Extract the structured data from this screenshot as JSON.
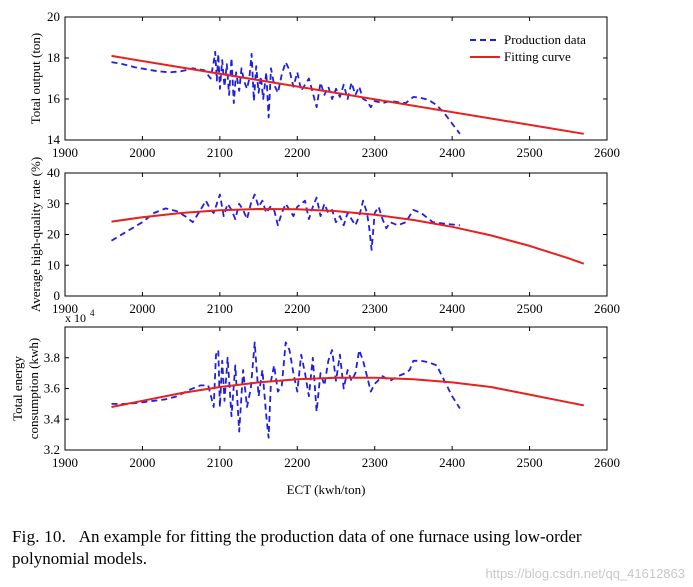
{
  "chart_data": [
    {
      "type": "line",
      "ylabel": "Total output (ton)",
      "xlabel": "",
      "xlim": [
        1900,
        2600
      ],
      "ylim": [
        14,
        20
      ],
      "xticks": [
        1900,
        2000,
        2100,
        2200,
        2300,
        2400,
        2500,
        2600
      ],
      "yticks": [
        14,
        16,
        18,
        20
      ],
      "grid": false,
      "legend_position": "top-right",
      "series": [
        {
          "name": "Production data",
          "style": "dashed",
          "color": "#1f1fe0",
          "x": [
            1960,
            1975,
            1990,
            2005,
            2020,
            2035,
            2050,
            2065,
            2080,
            2088,
            2092,
            2094,
            2096,
            2098,
            2100,
            2103,
            2106,
            2109,
            2112,
            2115,
            2118,
            2121,
            2125,
            2128,
            2131,
            2135,
            2138,
            2141,
            2144,
            2147,
            2150,
            2153,
            2156,
            2160,
            2163,
            2166,
            2170,
            2175,
            2180,
            2185,
            2190,
            2195,
            2200,
            2205,
            2210,
            2215,
            2220,
            2225,
            2230,
            2235,
            2240,
            2245,
            2250,
            2255,
            2260,
            2265,
            2270,
            2275,
            2280,
            2285,
            2290,
            2295,
            2300,
            2310,
            2320,
            2330,
            2340,
            2345,
            2350,
            2360,
            2370,
            2380,
            2390,
            2400,
            2410
          ],
          "y": [
            17.8,
            17.7,
            17.55,
            17.45,
            17.35,
            17.3,
            17.35,
            17.5,
            17.4,
            17.0,
            17.8,
            18.3,
            16.9,
            18.2,
            16.5,
            17.9,
            16.6,
            17.7,
            16.2,
            18.0,
            15.8,
            17.3,
            16.4,
            17.5,
            16.9,
            16.5,
            17.0,
            18.2,
            15.9,
            17.6,
            16.3,
            17.1,
            16.0,
            17.3,
            15.1,
            17.5,
            16.7,
            16.3,
            17.2,
            17.8,
            17.4,
            16.6,
            17.3,
            16.4,
            16.7,
            17.0,
            16.3,
            15.6,
            16.8,
            16.2,
            16.6,
            16.0,
            16.5,
            16.1,
            16.7,
            16.0,
            16.8,
            16.2,
            16.6,
            16.0,
            15.9,
            15.6,
            15.9,
            15.8,
            15.9,
            15.85,
            15.8,
            15.95,
            16.1,
            16.05,
            15.95,
            15.7,
            15.3,
            14.8,
            14.3
          ]
        },
        {
          "name": "Fitting curve",
          "style": "solid",
          "color": "#e8201e",
          "x": [
            1960,
            2570
          ],
          "y": [
            18.1,
            14.3
          ]
        }
      ]
    },
    {
      "type": "line",
      "ylabel": "Average high-quality rate (%)",
      "xlabel": "",
      "xlim": [
        1900,
        2600
      ],
      "ylim": [
        0,
        40
      ],
      "xticks": [
        1900,
        2000,
        2100,
        2200,
        2300,
        2400,
        2500,
        2600
      ],
      "yticks": [
        0,
        10,
        20,
        30,
        40
      ],
      "grid": false,
      "series": [
        {
          "name": "Production data",
          "style": "dashed",
          "color": "#1f1fe0",
          "x": [
            1960,
            1980,
            2000,
            2015,
            2030,
            2045,
            2055,
            2065,
            2075,
            2082,
            2088,
            2092,
            2096,
            2100,
            2105,
            2110,
            2115,
            2120,
            2125,
            2130,
            2135,
            2140,
            2145,
            2150,
            2155,
            2160,
            2165,
            2170,
            2175,
            2180,
            2185,
            2190,
            2195,
            2200,
            2205,
            2210,
            2215,
            2220,
            2225,
            2230,
            2235,
            2240,
            2245,
            2250,
            2255,
            2260,
            2265,
            2270,
            2275,
            2280,
            2285,
            2290,
            2293,
            2296,
            2300,
            2305,
            2310,
            2315,
            2320,
            2330,
            2340,
            2350,
            2360,
            2375,
            2390,
            2410
          ],
          "y": [
            18,
            21,
            24,
            27,
            28.5,
            27.5,
            26,
            24,
            28,
            31,
            28,
            27,
            30,
            33,
            26,
            30,
            28,
            25,
            30,
            28,
            25,
            30,
            33,
            29,
            31,
            27,
            29,
            28,
            23,
            27,
            30,
            28,
            26,
            29,
            30,
            31,
            25,
            29,
            32,
            26,
            30,
            27,
            28,
            24,
            26,
            23,
            27,
            25,
            23,
            26,
            31,
            27,
            22,
            15,
            27,
            29,
            25,
            22,
            24,
            23,
            24,
            28,
            27,
            24,
            23.5,
            23
          ]
        },
        {
          "name": "Fitting curve",
          "style": "solid",
          "color": "#e8201e",
          "x": [
            1960,
            2000,
            2050,
            2100,
            2150,
            2200,
            2250,
            2300,
            2350,
            2400,
            2450,
            2500,
            2550,
            2570
          ],
          "y": [
            24.2,
            25.6,
            27.0,
            27.9,
            28.3,
            28.2,
            27.6,
            26.4,
            24.7,
            22.5,
            19.7,
            16.3,
            12.3,
            10.5
          ]
        }
      ]
    },
    {
      "type": "line",
      "ylabel": "Total energy consumption (kwh)",
      "xlabel": "ECT (kwh/ton)",
      "axis_multiplier": "x 10",
      "axis_multiplier_exp": "4",
      "xlim": [
        1900,
        2600
      ],
      "ylim": [
        3.2,
        4.0
      ],
      "xticks": [
        1900,
        2000,
        2100,
        2200,
        2300,
        2400,
        2500,
        2600
      ],
      "yticks": [
        3.2,
        3.4,
        3.6,
        3.8
      ],
      "grid": false,
      "series": [
        {
          "name": "Production data",
          "style": "dashed",
          "color": "#1f1fe0",
          "x": [
            1960,
            1980,
            2000,
            2015,
            2030,
            2045,
            2060,
            2075,
            2085,
            2092,
            2095,
            2098,
            2100,
            2103,
            2106,
            2110,
            2115,
            2120,
            2125,
            2130,
            2135,
            2140,
            2145,
            2150,
            2155,
            2160,
            2163,
            2166,
            2170,
            2175,
            2180,
            2185,
            2190,
            2195,
            2200,
            2205,
            2210,
            2215,
            2220,
            2225,
            2230,
            2235,
            2240,
            2245,
            2250,
            2255,
            2260,
            2265,
            2270,
            2275,
            2280,
            2285,
            2290,
            2295,
            2300,
            2310,
            2320,
            2330,
            2340,
            2345,
            2350,
            2360,
            2370,
            2380,
            2390,
            2400,
            2410
          ],
          "y": [
            3.5,
            3.5,
            3.51,
            3.52,
            3.53,
            3.55,
            3.59,
            3.62,
            3.62,
            3.48,
            3.82,
            3.85,
            3.48,
            3.78,
            3.52,
            3.8,
            3.42,
            3.75,
            3.32,
            3.72,
            3.48,
            3.6,
            3.9,
            3.55,
            3.72,
            3.42,
            3.28,
            3.65,
            3.75,
            3.58,
            3.62,
            3.9,
            3.85,
            3.7,
            3.58,
            3.82,
            3.7,
            3.55,
            3.8,
            3.45,
            3.7,
            3.62,
            3.78,
            3.85,
            3.65,
            3.82,
            3.6,
            3.72,
            3.65,
            3.7,
            3.85,
            3.78,
            3.68,
            3.58,
            3.63,
            3.68,
            3.65,
            3.68,
            3.7,
            3.72,
            3.78,
            3.78,
            3.77,
            3.75,
            3.65,
            3.55,
            3.47
          ]
        },
        {
          "name": "Fitting curve",
          "style": "solid",
          "color": "#e8201e",
          "x": [
            1960,
            2000,
            2050,
            2100,
            2150,
            2200,
            2250,
            2300,
            2350,
            2400,
            2450,
            2500,
            2550,
            2570
          ],
          "y": [
            3.48,
            3.52,
            3.57,
            3.61,
            3.64,
            3.66,
            3.67,
            3.67,
            3.66,
            3.64,
            3.61,
            3.56,
            3.51,
            3.49
          ]
        }
      ]
    }
  ],
  "caption": {
    "label": "Fig. 10.",
    "text": "An example for fitting the production data of one furnace using low-order polynomial models."
  },
  "watermark": "https://blog.csdn.net/qq_41612863",
  "colors": {
    "data_series": "#1f1fe0",
    "fit_series": "#e8201e"
  }
}
